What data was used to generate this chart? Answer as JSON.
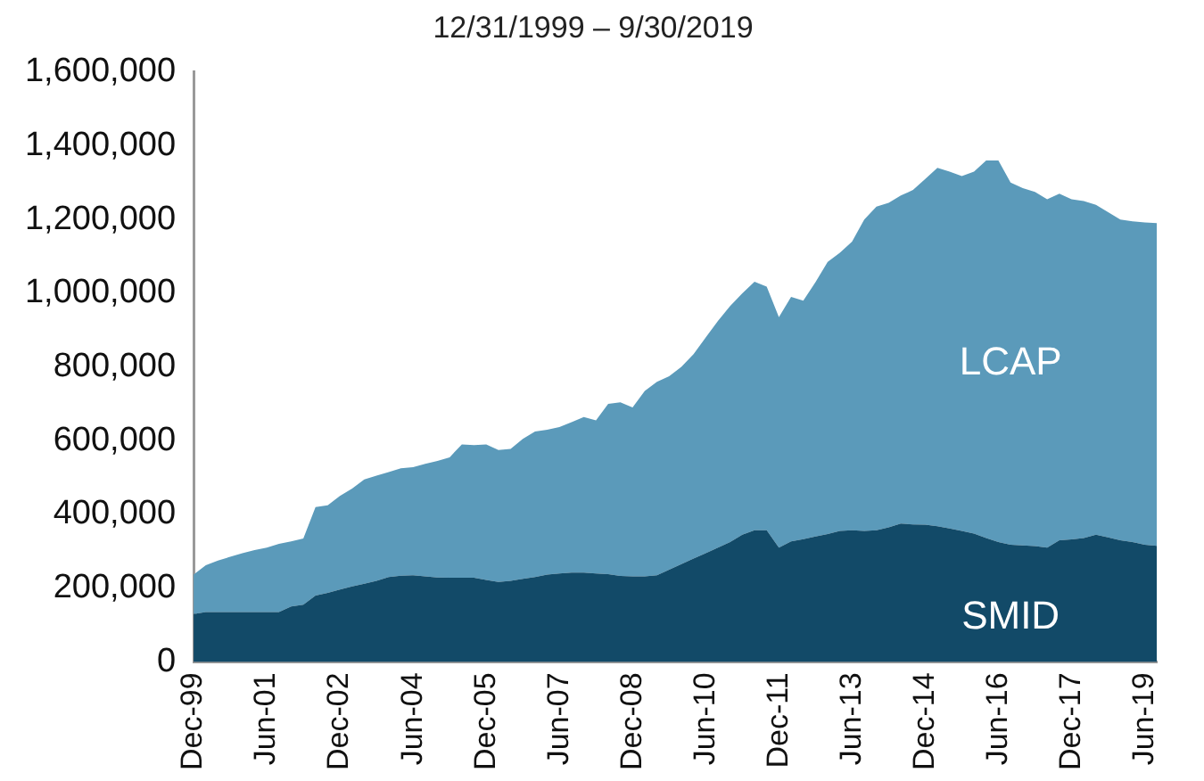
{
  "chart_data": {
    "type": "area",
    "stacked": true,
    "title": "12/31/1999 – 9/30/2019",
    "categories": [
      "Dec-99",
      null,
      null,
      null,
      null,
      null,
      "Jun-01",
      null,
      null,
      null,
      null,
      null,
      "Dec-02",
      null,
      null,
      null,
      null,
      null,
      "Jun-04",
      null,
      null,
      null,
      null,
      null,
      "Dec-05",
      null,
      null,
      null,
      null,
      null,
      "Jun-07",
      null,
      null,
      null,
      null,
      null,
      "Dec-08",
      null,
      null,
      null,
      null,
      null,
      "Jun-10",
      null,
      null,
      null,
      null,
      null,
      "Dec-11",
      null,
      null,
      null,
      null,
      null,
      "Jun-13",
      null,
      null,
      null,
      null,
      null,
      "Dec-14",
      null,
      null,
      null,
      null,
      null,
      "Jun-16",
      null,
      null,
      null,
      null,
      null,
      "Dec-17",
      null,
      null,
      null,
      null,
      null,
      "Jun-19",
      null
    ],
    "series": [
      {
        "name": "SMID",
        "color": "#124a68",
        "values": [
          130000,
          135000,
          135000,
          135000,
          135000,
          135000,
          135000,
          135000,
          150000,
          155000,
          180000,
          187000,
          196000,
          205000,
          212000,
          220000,
          230000,
          234000,
          235000,
          232000,
          229000,
          228000,
          228000,
          228000,
          222000,
          217000,
          220000,
          225000,
          230000,
          237000,
          240000,
          242000,
          242000,
          240000,
          238000,
          233000,
          232000,
          232000,
          235000,
          250000,
          265000,
          280000,
          295000,
          310000,
          325000,
          345000,
          357000,
          357000,
          310000,
          327000,
          333000,
          340000,
          347000,
          355000,
          357000,
          355000,
          357000,
          365000,
          375000,
          373000,
          372000,
          368000,
          362000,
          355000,
          348000,
          336000,
          325000,
          318000,
          316000,
          314000,
          310000,
          330000,
          332000,
          336000,
          345000,
          338000,
          330000,
          325000,
          318000,
          315000
        ]
      },
      {
        "name": "LCAP",
        "color": "#5b9aba",
        "values": [
          107000,
          127000,
          140000,
          150000,
          160000,
          168000,
          175000,
          185000,
          177000,
          180000,
          240000,
          238000,
          254000,
          265000,
          283000,
          285000,
          285000,
          291000,
          293000,
          305000,
          316000,
          327000,
          362000,
          360000,
          368000,
          358000,
          358000,
          380000,
          395000,
          393000,
          397000,
          408000,
          422000,
          415000,
          462000,
          471000,
          458000,
          503000,
          525000,
          525000,
          535000,
          555000,
          585000,
          615000,
          640000,
          655000,
          674000,
          661000,
          625000,
          663000,
          647000,
          690000,
          738000,
          755000,
          783000,
          845000,
          878000,
          880000,
          890000,
          907000,
          938000,
          972000,
          968000,
          963000,
          982000,
          1024000,
          1035000,
          982000,
          969000,
          961000,
          945000,
          940000,
          923000,
          914000,
          895000,
          882000,
          870000,
          870000,
          874000,
          875000
        ]
      }
    ],
    "ylim": [
      0,
      1600000
    ],
    "yticks": [
      {
        "value": 0,
        "label": "0"
      },
      {
        "value": 200000,
        "label": "200,000"
      },
      {
        "value": 400000,
        "label": "400,000"
      },
      {
        "value": 600000,
        "label": "600,000"
      },
      {
        "value": 800000,
        "label": "800,000"
      },
      {
        "value": 1000000,
        "label": "1,000,000"
      },
      {
        "value": 1200000,
        "label": "1,200,000"
      },
      {
        "value": 1400000,
        "label": "1,400,000"
      },
      {
        "value": 1600000,
        "label": "1,600,000"
      }
    ],
    "grid": false,
    "legend": false,
    "marker": "none"
  }
}
